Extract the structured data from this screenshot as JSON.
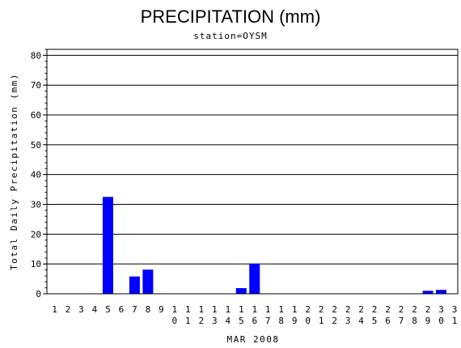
{
  "chart_data": {
    "type": "bar",
    "title": "PRECIPITATION (mm)",
    "subtitle": "station=OYSM",
    "xlabel": "MAR 2008",
    "ylabel": "Total Daily Precipitation (mm)",
    "ylim": [
      0,
      82
    ],
    "yticks": [
      0,
      10,
      20,
      30,
      40,
      50,
      60,
      70,
      80
    ],
    "grid": true,
    "bar_color": "#0000ff",
    "categories": [
      "1",
      "2",
      "3",
      "4",
      "5",
      "6",
      "7",
      "8",
      "9",
      "10",
      "11",
      "12",
      "13",
      "14",
      "15",
      "16",
      "17",
      "18",
      "19",
      "20",
      "21",
      "22",
      "23",
      "24",
      "25",
      "26",
      "27",
      "28",
      "29",
      "30",
      "31"
    ],
    "values": [
      0,
      0,
      0,
      0,
      32.5,
      0,
      5.8,
      8.1,
      0,
      0,
      0,
      0,
      0,
      0,
      1.9,
      10.1,
      0,
      0,
      0,
      0,
      0,
      0,
      0,
      0,
      0,
      0,
      0,
      0,
      1.0,
      1.3,
      0
    ]
  }
}
